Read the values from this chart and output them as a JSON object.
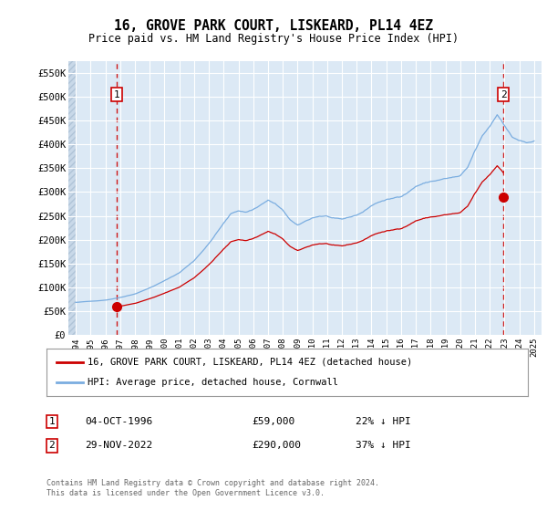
{
  "title": "16, GROVE PARK COURT, LISKEARD, PL14 4EZ",
  "subtitle": "Price paid vs. HM Land Registry's House Price Index (HPI)",
  "ylim": [
    0,
    575000
  ],
  "yticks": [
    0,
    50000,
    100000,
    150000,
    200000,
    250000,
    300000,
    350000,
    400000,
    450000,
    500000,
    550000
  ],
  "ytick_labels": [
    "£0",
    "£50K",
    "£100K",
    "£150K",
    "£200K",
    "£250K",
    "£300K",
    "£350K",
    "£400K",
    "£450K",
    "£500K",
    "£550K"
  ],
  "background_color": "#dce9f5",
  "grid_color": "#ffffff",
  "property_color": "#cc0000",
  "hpi_color": "#7aade0",
  "legend_label_property": "16, GROVE PARK COURT, LISKEARD, PL14 4EZ (detached house)",
  "legend_label_hpi": "HPI: Average price, detached house, Cornwall",
  "point1_date": "04-OCT-1996",
  "point1_value": 59000,
  "point1_hpi_pct": "22% ↓ HPI",
  "point2_date": "29-NOV-2022",
  "point2_value": 290000,
  "point2_hpi_pct": "37% ↓ HPI",
  "footer": "Contains HM Land Registry data © Crown copyright and database right 2024.\nThis data is licensed under the Open Government Licence v3.0.",
  "sale1_x": 1996.75,
  "sale2_x": 2022.917
}
